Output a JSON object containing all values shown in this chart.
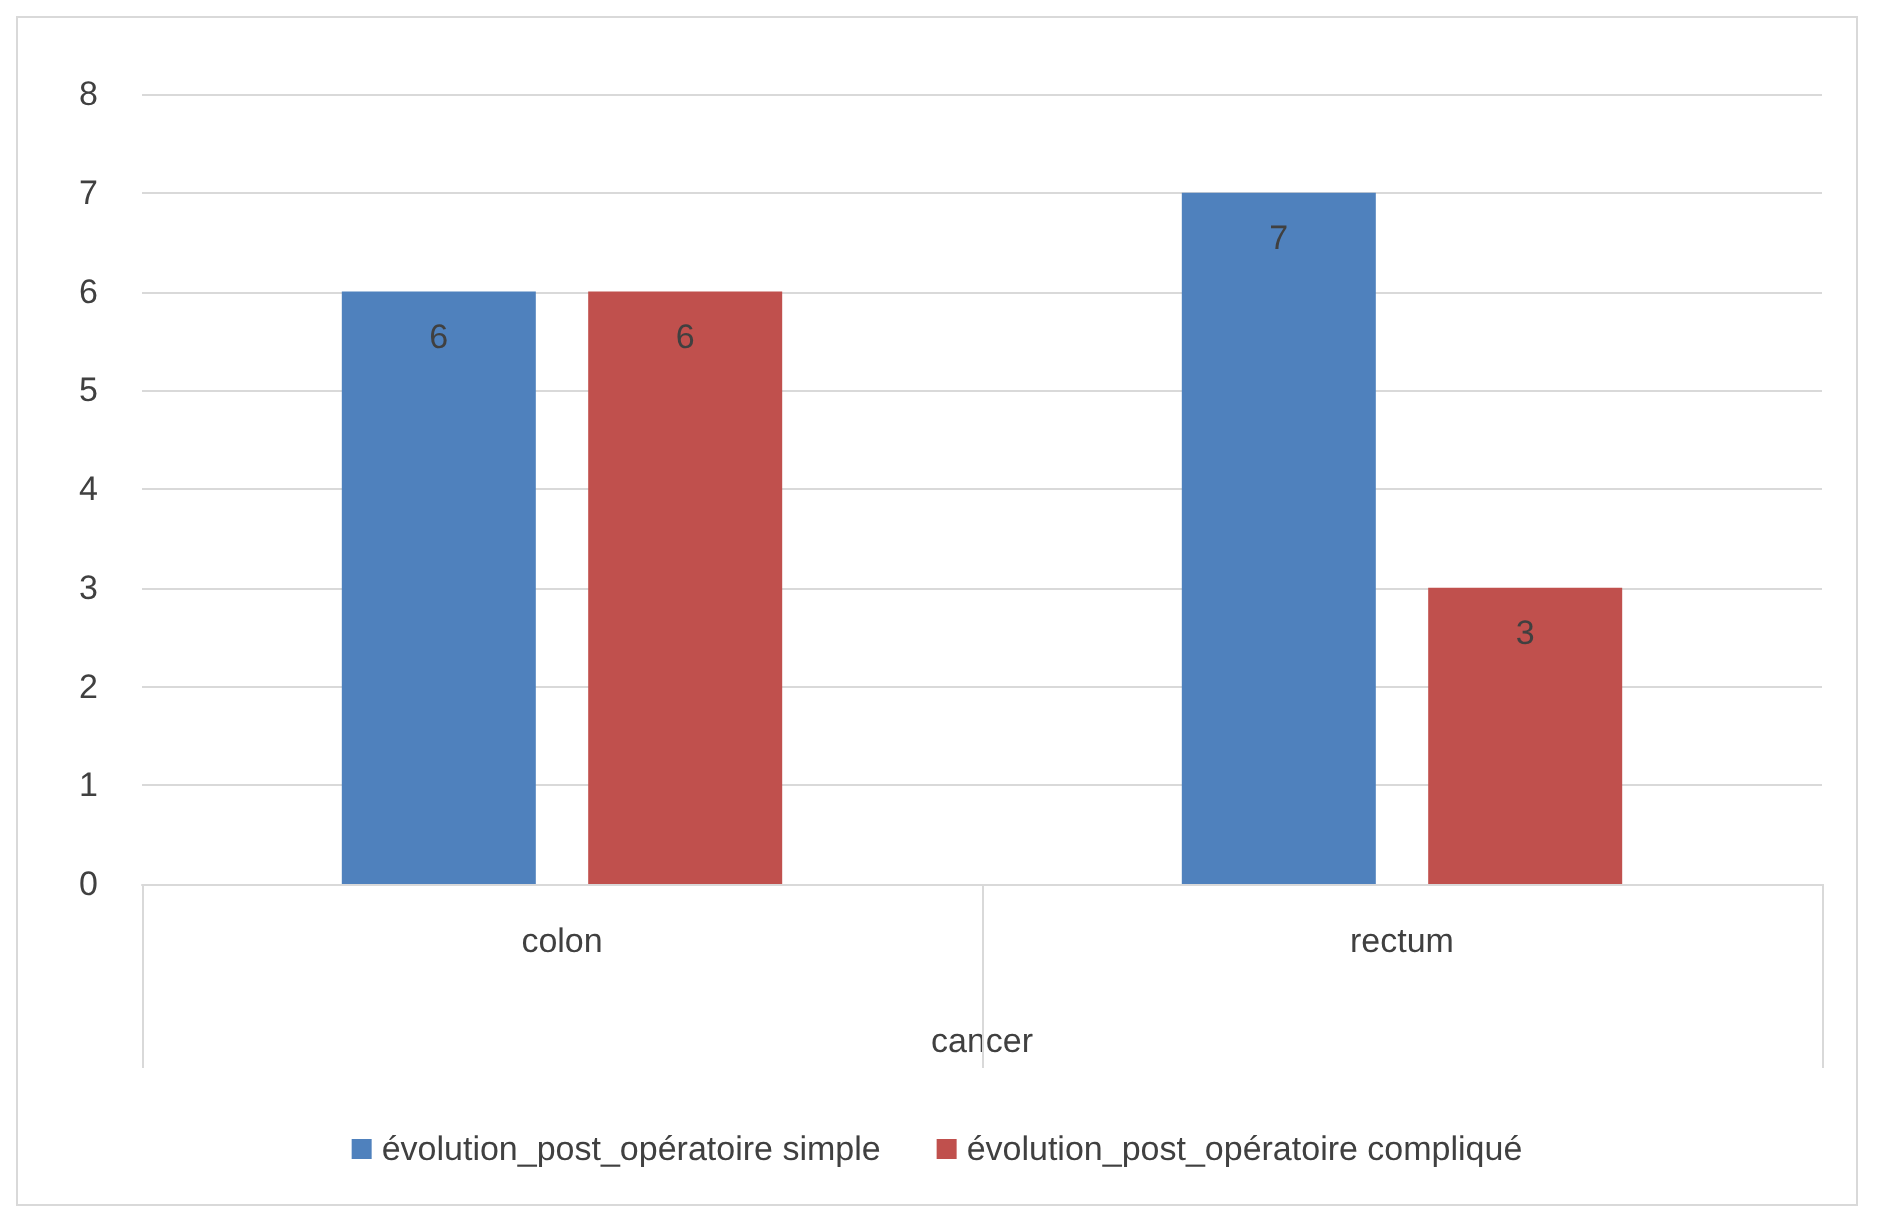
{
  "chart_data": {
    "type": "bar",
    "xlabel": "cancer",
    "categories": [
      "colon",
      "rectum"
    ],
    "series": [
      {
        "name": "évolution_post_opératoire simple",
        "color": "#4f81bd",
        "values": [
          6,
          7
        ]
      },
      {
        "name": "évolution_post_opératoire compliqué",
        "color": "#c0504d",
        "values": [
          6,
          3
        ]
      }
    ],
    "ylim": [
      0,
      8
    ],
    "yticks": [
      0,
      1,
      2,
      3,
      4,
      5,
      6,
      7,
      8
    ],
    "grid": "y",
    "legend": "bottom",
    "data_labels": true
  }
}
